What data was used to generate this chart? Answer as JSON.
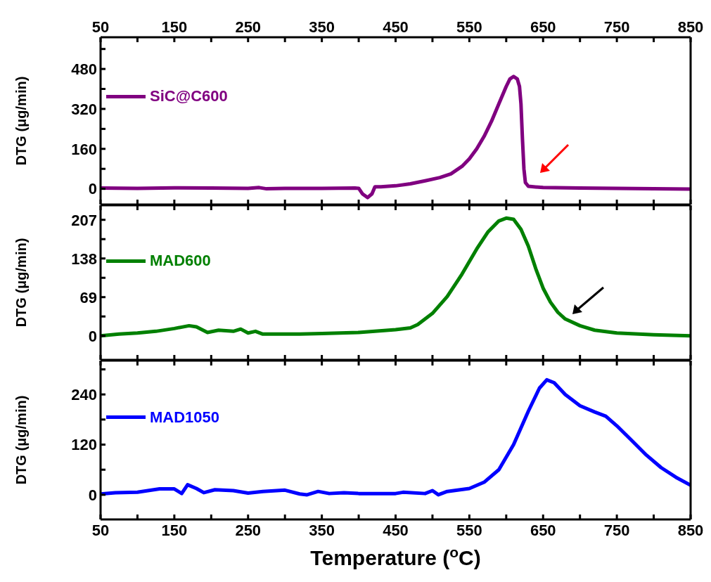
{
  "chart_data": [
    {
      "type": "line",
      "ylabel": "DTG (μg/min)",
      "legend": "left",
      "tick_labels": "y",
      "x": [
        50,
        100,
        150,
        200,
        250,
        265,
        275,
        300,
        350,
        395,
        400,
        405,
        412,
        418,
        422,
        430,
        450,
        470,
        490,
        510,
        525,
        540,
        550,
        560,
        570,
        580,
        590,
        600,
        605,
        610,
        615,
        618,
        620,
        622,
        624,
        626,
        630,
        650,
        700,
        750,
        800,
        850
      ],
      "series": [
        {
          "name": "SiC@C600",
          "color": "#800080",
          "values": [
            3,
            2,
            4,
            3,
            2,
            5,
            0,
            2,
            2,
            3,
            2,
            -20,
            -35,
            -20,
            8,
            8,
            12,
            20,
            32,
            45,
            60,
            90,
            120,
            160,
            210,
            270,
            340,
            410,
            440,
            450,
            440,
            410,
            340,
            200,
            80,
            25,
            10,
            5,
            3,
            2,
            0,
            -1
          ]
        }
      ],
      "xlim": [
        50,
        850
      ],
      "xticks": [
        50,
        {
          "value": 100,
          "label": null
        },
        150,
        {
          "value": 200,
          "label": null
        },
        250,
        {
          "value": 300,
          "label": null
        },
        350,
        {
          "value": 400,
          "label": null
        },
        450,
        {
          "value": 500,
          "label": null
        },
        550,
        {
          "value": 600,
          "label": null
        },
        650,
        {
          "value": 700,
          "label": null
        },
        750,
        {
          "value": 800,
          "label": null
        },
        850
      ],
      "x2lim": [
        50,
        850
      ],
      "x2ticks": [
        50,
        {
          "value": 100,
          "label": null
        },
        150,
        {
          "value": 200,
          "label": null
        },
        250,
        {
          "value": 300,
          "label": null
        },
        350,
        {
          "value": 400,
          "label": null
        },
        450,
        {
          "value": 500,
          "label": null
        },
        550,
        {
          "value": 600,
          "label": null
        },
        650,
        {
          "value": 700,
          "label": null
        },
        750,
        {
          "value": 800,
          "label": null
        },
        850
      ],
      "ylim": [
        -63,
        607
      ],
      "yticks": [
        0,
        {
          "value": 80,
          "label": null
        },
        160,
        {
          "value": 240,
          "label": null
        },
        320,
        {
          "value": 400,
          "label": null
        },
        480,
        {
          "value": 560,
          "label": null
        }
      ]
    },
    {
      "type": "line",
      "ylabel": "DTG (μg/min)",
      "legend": "left",
      "tick_labels": "y",
      "x": [
        50,
        75,
        100,
        125,
        150,
        170,
        180,
        195,
        210,
        230,
        240,
        250,
        260,
        270,
        290,
        320,
        350,
        400,
        450,
        470,
        480,
        500,
        520,
        540,
        560,
        575,
        590,
        600,
        610,
        620,
        630,
        640,
        650,
        660,
        670,
        680,
        700,
        720,
        750,
        800,
        850
      ],
      "series": [
        {
          "name": "MAD600",
          "color": "#008000",
          "values": [
            0,
            3,
            5,
            8,
            13,
            18,
            16,
            6,
            10,
            8,
            12,
            5,
            8,
            3,
            3,
            3,
            4,
            6,
            11,
            14,
            20,
            40,
            70,
            110,
            155,
            185,
            205,
            210,
            208,
            190,
            160,
            120,
            85,
            60,
            42,
            30,
            18,
            10,
            5,
            2,
            0
          ]
        }
      ],
      "xlim": [
        50,
        850
      ],
      "xticks": [
        50,
        {
          "value": 100,
          "label": null
        },
        150,
        {
          "value": 200,
          "label": null
        },
        250,
        {
          "value": 300,
          "label": null
        },
        350,
        {
          "value": 400,
          "label": null
        },
        450,
        {
          "value": 500,
          "label": null
        },
        550,
        {
          "value": 600,
          "label": null
        },
        650,
        {
          "value": 700,
          "label": null
        },
        750,
        {
          "value": 800,
          "label": null
        },
        850
      ],
      "ylim": [
        -43,
        233
      ],
      "yticks": [
        0,
        {
          "value": 34.5,
          "label": null
        },
        69,
        {
          "value": 103.5,
          "label": null
        },
        138,
        {
          "value": 172.5,
          "label": null
        },
        207
      ]
    },
    {
      "type": "line",
      "ylabel": "DTG (μg/min)",
      "xlabel": "Temperature ($^{o}$C)",
      "legend": "left",
      "x": [
        50,
        70,
        100,
        130,
        150,
        160,
        168,
        180,
        190,
        205,
        230,
        250,
        270,
        300,
        320,
        330,
        345,
        360,
        380,
        400,
        450,
        460,
        490,
        500,
        508,
        520,
        550,
        570,
        590,
        610,
        630,
        645,
        655,
        665,
        680,
        700,
        720,
        735,
        750,
        770,
        790,
        810,
        830,
        850
      ],
      "series": [
        {
          "name": "MAD1050",
          "color": "#0000ff",
          "values": [
            2,
            5,
            6,
            14,
            14,
            3,
            24,
            15,
            5,
            12,
            10,
            4,
            8,
            11,
            2,
            0,
            8,
            3,
            5,
            3,
            3,
            6,
            3,
            10,
            0,
            8,
            15,
            30,
            60,
            120,
            200,
            255,
            275,
            268,
            240,
            213,
            198,
            188,
            165,
            130,
            95,
            65,
            42,
            23
          ]
        }
      ],
      "xlim": [
        50,
        850
      ],
      "xticks": [
        50,
        {
          "value": 100,
          "label": null
        },
        150,
        {
          "value": 200,
          "label": null
        },
        250,
        {
          "value": 300,
          "label": null
        },
        350,
        {
          "value": 400,
          "label": null
        },
        450,
        {
          "value": 500,
          "label": null
        },
        550,
        {
          "value": 600,
          "label": null
        },
        650,
        {
          "value": 700,
          "label": null
        },
        750,
        {
          "value": 800,
          "label": null
        },
        850
      ],
      "ylim": [
        -59,
        321
      ],
      "yticks": [
        0,
        {
          "value": 60,
          "label": null
        },
        120,
        {
          "value": 180,
          "label": null
        },
        240,
        {
          "value": 300,
          "label": null
        }
      ]
    }
  ]
}
